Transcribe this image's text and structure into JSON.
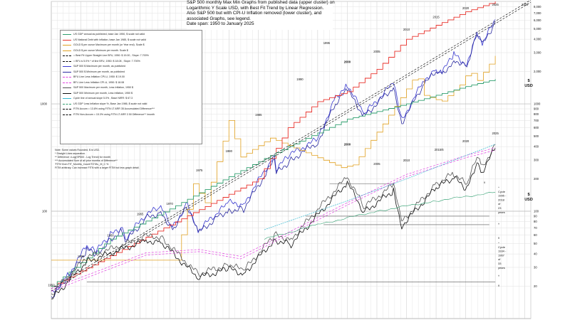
{
  "title_lines": [
    "S&P 500 monthly Max Min Graphs from published data (upper cluster) on",
    "Logarithmic Y Scale USD, with Best Fit Trend by Linear Regression.",
    "Also S&P 500 but with CPI-U Inflation removed (lower cluster), and",
    "associated Graphs, see legend.",
    "Date span: 1950 to January 2025"
  ],
  "legend_items": [
    {
      "label": "US GDP annual as published, base Jan 1950, $ scale not valid",
      "color": "#2e9e6e",
      "style": "solid"
    },
    {
      "label": "US National Debt with inflation, base Jan 1985, $ scale not valid",
      "color": "#e8302a",
      "style": "solid"
    },
    {
      "label": "GOLD $ per ounce Maximum per month (or Year end). Scale $",
      "color": "#e0a020",
      "style": "solid"
    },
    {
      "label": "GOLD $ per ounce Minimum per month. Scale $",
      "color": "#e0a020",
      "style": "solid"
    },
    {
      "label": "= Best Fit Upper Straight Line BFU, 1950: $ 19.00 , Slope: 7.700%",
      "color": "#000000",
      "style": "dash"
    },
    {
      "label": "= BFL is 5.0% * of line BFU, 1950: $ 18.08 , Slope: 7.700%",
      "color": "#000000",
      "style": "dash"
    },
    {
      "label": "S&P 500 $ Maximum per month, as published",
      "color": "#3a3ad0",
      "style": "solid"
    },
    {
      "label": "S&P 500 $ Minimum per month, as published",
      "color": "#2a2aa0",
      "style": "solid"
    },
    {
      "label": "BFU Line Less Inflation CPI-U, 1950: $ 19.00",
      "color": "#e040e0",
      "style": "dash"
    },
    {
      "label": "BFL Line Less Inflation CPI-U, 1950: $ 18.08",
      "color": "#e040e0",
      "style": "dash"
    },
    {
      "label": "S&P 500 Maximum per month, Less Inflation, 1950 $",
      "color": "#555555",
      "style": "solid"
    },
    {
      "label": "S&P 500 Minimum per month, Less Inflation, 1950 $",
      "color": "#111111",
      "style": "solid"
    },
    {
      "label": "Cycle line of annual slope 5.0% , Base NIRR: $ 67.3",
      "color": "#35b8d0",
      "style": "solid"
    },
    {
      "label": "US GDP Less Inflation slope %, Base Jan 1986, $ scale not valid",
      "color": "#2e9e6e",
      "style": "dash"
    },
    {
      "label": "FITN Accum = 13.8% using FITN LT ARR 35 Accumulated Difference***",
      "color": "#000000",
      "style": "dash"
    },
    {
      "label": "FITN Non-Accum = 15.3% using FITN LT ARR 3 50 Difference** /month",
      "color": "#000000",
      "style": "dash"
    }
  ],
  "notes": [
    "Note: Some values Rounded, $ is USD.",
    "* Straight Lines separation.",
    "** Difference =Log(SP500 - Log Trend) for month",
    "*** Accumulated Sum of all prior months of Difference**",
    "'FITN' from FIT_Months_Count/TOTAL_M_C %",
    "FITM arbitrary. Can increase FITN with a larger FITM but less graph detail."
  ],
  "y_tick_labels_left": [
    "1000",
    "100"
  ],
  "y_tick_labels_right": [
    "8,000",
    "7,000",
    "6,000",
    "5,000",
    "4,000",
    "3,000",
    "2,000",
    "1000",
    "900",
    "800",
    "700",
    "600",
    "500",
    "400",
    "300",
    "200",
    "100",
    "90",
    "80",
    "70",
    "60",
    "50",
    "40",
    "30",
    "20"
  ],
  "axis_units": [
    "$\nUSD",
    "$\nUSD"
  ],
  "cycle_notes": [
    {
      "lines": [
        "^",
        "Cycle",
        "1995 -",
        "2018",
        "of",
        "23",
        "years"
      ]
    },
    {
      "lines": [
        "^",
        "Cycle",
        "1934 -",
        "1967",
        "of",
        "33",
        "years"
      ]
    }
  ],
  "markers": [
    "v",
    "^",
    "v",
    "^",
    "v"
  ],
  "colors": {
    "sp_max": "#3a3ad0",
    "sp_min": "#2a2aa0",
    "gold": "#e0a020",
    "debt": "#e8302a",
    "gdp": "#2e9e6e",
    "real_max": "#555555",
    "real_min": "#111111",
    "bf_lines": "#000000",
    "cpi_lines": "#e040e0",
    "cycle": "#35b8d0"
  },
  "chart_data": {
    "type": "line",
    "title": "S&P 500 monthly Max Min Graphs from published data (upper cluster) on Logarithmic Y Scale USD, with Best Fit Trend by Linear Regression. Also S&P 500 but with CPI-U Inflation removed (lower cluster), and associated Graphs, see legend. Date span: 1950 to January 2025",
    "y_scale": "log",
    "xlim": [
      1950,
      2031
    ],
    "ylim_left": [
      10,
      9000
    ],
    "grid": true,
    "legend_placement": "top-left",
    "year_labels": [
      {
        "label": "1950",
        "x": 1950,
        "y": 20
      },
      {
        "label": "1955",
        "x": 1955,
        "y": 37
      },
      {
        "label": "1960",
        "x": 1960,
        "y": 58
      },
      {
        "label": "1965",
        "x": 1965,
        "y": 92
      },
      {
        "label": "1970",
        "x": 1970,
        "y": 115
      },
      {
        "label": "1975",
        "x": 1975,
        "y": 235
      },
      {
        "label": "1980",
        "x": 1980,
        "y": 355
      },
      {
        "label": "1985",
        "x": 1985,
        "y": 770
      },
      {
        "label": "1990",
        "x": 1992,
        "y": 1650
      },
      {
        "label": "1995",
        "x": 1996.5,
        "y": 3600
      },
      {
        "label": "2000",
        "x": 2000,
        "y": 2400
      },
      {
        "label": "2005",
        "x": 2005,
        "y": 3000
      },
      {
        "label": "2010",
        "x": 2010,
        "y": 4800
      },
      {
        "label": "2015",
        "x": 2015,
        "y": 6300
      },
      {
        "label": "2020",
        "x": 2020,
        "y": 7600
      },
      {
        "label": "2025",
        "x": 2025,
        "y": 9000
      },
      {
        "label": "2030",
        "x": 2030,
        "y": 9000
      },
      {
        "label": "2000",
        "x": 2000,
        "y": 410
      },
      {
        "label": "2005",
        "x": 2005,
        "y": 270
      },
      {
        "label": "2010",
        "x": 2010,
        "y": 290
      },
      {
        "label": "2015/6",
        "x": 2015.5,
        "y": 365
      },
      {
        "label": "2020",
        "x": 2020,
        "y": 440
      },
      {
        "label": "2025",
        "x": 2025,
        "y": 520
      }
    ],
    "series": [
      {
        "name": "S&P 500 $ Maximum per month, as published",
        "x": [
          1950,
          1953,
          1956,
          1957.5,
          1960,
          1962,
          1962.5,
          1966,
          1968.5,
          1970.5,
          1973,
          1974.8,
          1978,
          1980,
          1982.5,
          1987.7,
          1988,
          1990.5,
          1995,
          1998,
          2000,
          2002.8,
          2007.8,
          2009.2,
          2013,
          2015,
          2016,
          2018,
          2020.2,
          2021.9,
          2022.8,
          2025
        ],
        "values": [
          17,
          26,
          48,
          42,
          60,
          72,
          55,
          94,
          108,
          70,
          120,
          66,
          96,
          120,
          116,
          335,
          250,
          340,
          470,
          1150,
          1530,
          800,
          1560,
          700,
          1680,
          2100,
          1950,
          2900,
          2300,
          4800,
          3600,
          6100
        ]
      },
      {
        "name": "S&P 500 $ Minimum per month, as published",
        "x": [
          1950,
          1953,
          1956,
          1957.5,
          1960,
          1962,
          1962.5,
          1966,
          1968.5,
          1970.5,
          1973,
          1974.8,
          1978,
          1980,
          1982.5,
          1987.7,
          1988,
          1990.5,
          1995,
          1998,
          2000,
          2002.8,
          2007.8,
          2009.2,
          2013,
          2015,
          2016,
          2018,
          2020.2,
          2021.9,
          2022.8,
          2025
        ],
        "values": [
          16,
          24,
          44,
          39,
          55,
          66,
          52,
          86,
          98,
          68,
          110,
          62,
          88,
          102,
          105,
          300,
          225,
          300,
          440,
          1000,
          1350,
          770,
          1420,
          670,
          1560,
          1950,
          1820,
          2600,
          2240,
          4500,
          3500,
          5800
        ]
      },
      {
        "name": "GOLD $ per ounce Maximum per month (or Year end). Scale $",
        "x": [
          1950,
          1971,
          1974,
          1976,
          1980,
          1982,
          1987,
          1999,
          2001,
          2006,
          2011.7,
          2013,
          2015.9,
          2019,
          2020.6,
          2022,
          2025
        ],
        "values": [
          35,
          35,
          180,
          120,
          700,
          320,
          480,
          255,
          270,
          650,
          1900,
          1200,
          1050,
          1500,
          2050,
          1650,
          2800
        ]
      },
      {
        "name": "US National Debt with inflation, base Jan 1985, $ scale not valid",
        "x": [
          1950,
          1985,
          1990,
          1995,
          2000,
          2005,
          2010,
          2015,
          2020,
          2025
        ],
        "values": [
          20,
          200,
          600,
          1050,
          1300,
          2100,
          4000,
          5400,
          7200,
          9000
        ]
      },
      {
        "name": "US GDP annual as published, base Jan 1950, $ scale not valid",
        "x": [
          1950,
          1960,
          1970,
          1980,
          1990,
          2000,
          2010,
          2020,
          2025
        ],
        "values": [
          20,
          55,
          105,
          210,
          400,
          720,
          1000,
          1450,
          1700
        ]
      },
      {
        "name": "= Best Fit Upper Straight Line BFU, 1950: $ 19.00 , Slope: 7.700%",
        "x": [
          1950,
          2031
        ],
        "values": [
          19,
          9300
        ]
      },
      {
        "name": "= BFL is 5.0% * of line BFU, 1950: $ 18.08 , Slope: 7.700%",
        "x": [
          1950,
          2031
        ],
        "values": [
          18.08,
          8850
        ]
      },
      {
        "name": "S&P 500 Maximum per month, Less Inflation, 1950 $",
        "x": [
          1950,
          1956,
          1966,
          1968.5,
          1974.8,
          1980,
          1982.5,
          1987.7,
          1990.5,
          2000,
          2002.8,
          2007.8,
          2009.2,
          2015,
          2018,
          2020.2,
          2021.9,
          2022.8,
          2025
        ],
        "values": [
          17,
          37,
          58,
          58,
          26,
          32,
          28,
          60,
          55,
          210,
          110,
          175,
          80,
          180,
          225,
          175,
          320,
          255,
          420
        ]
      },
      {
        "name": "S&P 500 Minimum per month, Less Inflation, 1950 $",
        "x": [
          1950,
          1956,
          1966,
          1968.5,
          1974.8,
          1980,
          1982.5,
          1987.7,
          1990.5,
          2000,
          2002.8,
          2007.8,
          2009.2,
          2015,
          2018,
          2020.2,
          2021.9,
          2022.8,
          2025
        ],
        "values": [
          15,
          34,
          53,
          52,
          24,
          29,
          26,
          54,
          49,
          185,
          98,
          155,
          73,
          165,
          205,
          160,
          290,
          235,
          385
        ]
      },
      {
        "name": "BFU Line Less Inflation CPI-U, 1950: $ 19.00",
        "x": [
          1950,
          1966,
          1975,
          1982,
          2000,
          2010,
          2020,
          2025
        ],
        "values": [
          19,
          41,
          44,
          38,
          120,
          220,
          330,
          390
        ]
      },
      {
        "name": "BFL Line Less Inflation CPI-U, 1950: $ 18.08",
        "x": [
          1950,
          1966,
          1975,
          1982,
          2000,
          2010,
          2020,
          2025
        ],
        "values": [
          18,
          39,
          42,
          36,
          114,
          210,
          315,
          370
        ]
      },
      {
        "name": "US GDP Less Inflation slope %, Base Jan 1986, $ scale not valid",
        "x": [
          1986,
          1995,
          2005,
          2015,
          2025
        ],
        "values": [
          55,
          75,
          100,
          125,
          150
        ]
      },
      {
        "name": "Cycle line of annual slope 5.0% , Base NIRR: $ 67.3",
        "x": [
          1986,
          2000,
          2010,
          2020,
          2025
        ],
        "values": [
          67.3,
          125,
          200,
          330,
          420
        ]
      }
    ]
  }
}
